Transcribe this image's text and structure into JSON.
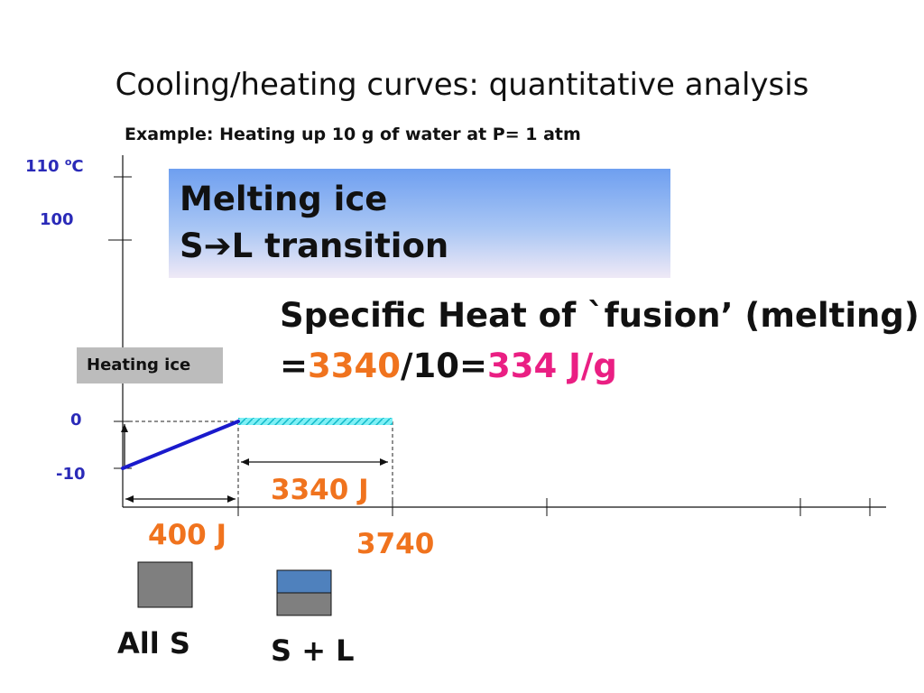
{
  "slide": {
    "title": "Cooling/heating curves: quantitative analysis",
    "subtitle": "Example: Heating up 10 g of water at P= 1 atm"
  },
  "y_tick_labels": {
    "t110_num": "110 ",
    "t110_sup": "o",
    "t110_unit": "C",
    "t100": "100",
    "t0": "0",
    "tm10": "-10"
  },
  "melting_box": {
    "line1": "Melting ice",
    "line2_start": "S",
    "line2_arrow": "➔",
    "line2_end": "L transition"
  },
  "heat_of_fusion": {
    "line1": "Specific Heat of `fusion’ (melting)",
    "eq": "=",
    "value1": "3340",
    "sep": "/10=",
    "value2": "334 J/g"
  },
  "heating_ice_label": "Heating ice",
  "energy_labels": {
    "heating_ice": "400 J",
    "melting": "3340 J",
    "total": "3740"
  },
  "phase_labels": {
    "solid": "All  S",
    "solid_liquid": "S + L"
  },
  "colors": {
    "curve": "#1a1acc",
    "plateau": "#22dde8",
    "orange": "#f0731e",
    "pink": "#ea1f83",
    "axis_labels": "#2a2ab8",
    "solid_swatch": "#7f7f7f",
    "liquid_swatch": "#4f81bd"
  },
  "chart_data": {
    "type": "line",
    "xlabel": "",
    "ylabel": "",
    "y_ticks": [
      110,
      100,
      0,
      -10
    ],
    "series": [
      {
        "x": [
          0,
          400
        ],
        "y": [
          -10,
          0
        ]
      },
      {
        "x": [
          400,
          3740
        ],
        "y": [
          0,
          0
        ]
      }
    ],
    "annotations": [
      {
        "text": "400 J",
        "x_range": [
          0,
          400
        ]
      },
      {
        "text": "3340 J",
        "x_range": [
          400,
          3740
        ]
      },
      {
        "text": "3740",
        "x": 3740
      }
    ]
  }
}
